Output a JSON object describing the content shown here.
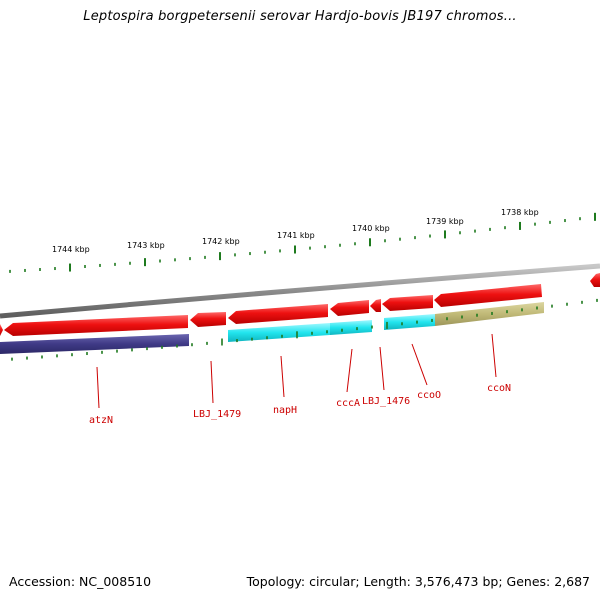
{
  "title": "Leptospira borgpetersenii serovar Hardjo-bovis JB197 chromos...",
  "footer": {
    "accession": "Accession: NC_008510",
    "summary": "Topology: circular; Length: 3,576,473 bp; Genes: 2,687"
  },
  "ticks": [
    {
      "label": "1744 kbp"
    },
    {
      "label": "1743 kbp"
    },
    {
      "label": "1742 kbp"
    },
    {
      "label": "1741 kbp"
    },
    {
      "label": "1740 kbp"
    },
    {
      "label": "1739 kbp"
    },
    {
      "label": "1738 kbp"
    }
  ],
  "gene_labels": [
    {
      "name": "atzN"
    },
    {
      "name": "LBJ_1479"
    },
    {
      "name": "napH"
    },
    {
      "name": "cccA"
    },
    {
      "name": "LBJ_1476"
    },
    {
      "name": "ccoO"
    },
    {
      "name": "ccoN"
    }
  ],
  "colors": {
    "backbone": "#8c8c8c",
    "gene_red": "#ee1111",
    "cds_cyan": "#22e5ee",
    "cds_navy": "#3f3a86",
    "cds_olive": "#c0b977",
    "tick_green": "#1e7a1e",
    "label_red": "#cc0000"
  }
}
